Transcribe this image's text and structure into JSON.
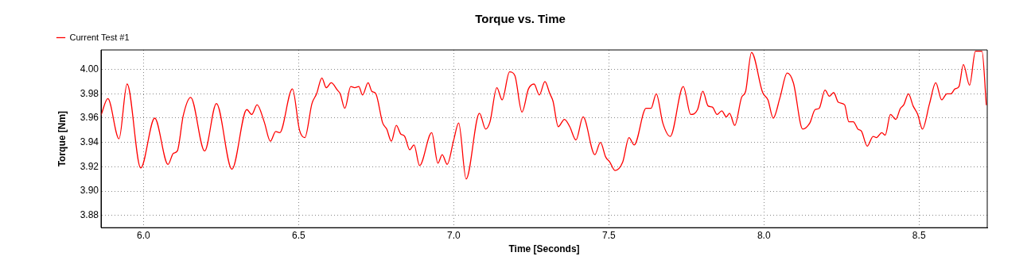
{
  "chart_data": {
    "type": "line",
    "title": "Torque vs. Time",
    "xlabel": "Time [Seconds]",
    "ylabel": "Torque [Nm]",
    "xlim": [
      5.863,
      8.72
    ],
    "ylim": [
      3.87,
      4.016
    ],
    "xticks": [
      {
        "value": 6,
        "label": "6.0"
      },
      6.5,
      {
        "value": 7,
        "label": "7.0"
      },
      7.5,
      {
        "value": 8,
        "label": "8.0"
      },
      8.5
    ],
    "yticks": [
      3.88,
      {
        "value": 3.9,
        "label": "3.90"
      },
      3.92,
      3.94,
      3.96,
      3.98,
      {
        "value": 4,
        "label": "4.00"
      }
    ],
    "grid": true,
    "legend": "top left",
    "x": [
      5.863,
      5.885,
      5.921,
      5.947,
      5.991,
      6.036,
      6.079,
      6.096,
      6.109,
      6.128,
      6.152,
      6.197,
      6.235,
      6.285,
      6.333,
      6.349,
      6.366,
      6.389,
      6.409,
      6.426,
      6.439,
      6.48,
      6.503,
      6.52,
      6.543,
      6.558,
      6.575,
      6.589,
      6.605,
      6.625,
      6.634,
      6.649,
      6.668,
      6.681,
      6.694,
      6.706,
      6.724,
      6.736,
      6.749,
      6.771,
      6.784,
      6.799,
      6.815,
      6.829,
      6.842,
      6.858,
      6.872,
      6.89,
      6.929,
      6.949,
      6.963,
      6.979,
      7.0,
      7.016,
      7.04,
      7.083,
      7.103,
      7.117,
      7.139,
      7.156,
      7.18,
      7.197,
      7.22,
      7.241,
      7.259,
      7.276,
      7.294,
      7.31,
      7.32,
      7.337,
      7.357,
      7.374,
      7.394,
      7.417,
      7.455,
      7.473,
      7.49,
      7.503,
      7.52,
      7.545,
      7.565,
      7.582,
      7.62,
      7.636,
      7.653,
      7.674,
      7.698,
      7.74,
      7.764,
      7.786,
      7.803,
      7.82,
      7.834,
      7.849,
      7.864,
      7.879,
      7.889,
      7.906,
      7.928,
      7.941,
      7.96,
      7.996,
      8.013,
      8.03,
      8.052,
      8.075,
      8.095,
      8.125,
      8.148,
      8.165,
      8.178,
      8.197,
      8.211,
      8.225,
      8.24,
      8.26,
      8.274,
      8.288,
      8.303,
      8.315,
      8.333,
      8.352,
      8.363,
      8.38,
      8.391,
      8.408,
      8.425,
      8.44,
      8.451,
      8.466,
      8.481,
      8.496,
      8.511,
      8.534,
      8.554,
      8.573,
      8.59,
      8.603,
      8.616,
      8.629,
      8.643,
      8.663,
      8.682,
      8.703,
      8.717
    ],
    "series": [
      {
        "name": "Current Test #1",
        "color": "#ff0000",
        "values": [
          3.9625,
          3.976,
          3.943,
          3.988,
          3.919,
          3.96,
          3.922,
          3.931,
          3.933,
          3.962,
          3.977,
          3.933,
          3.972,
          3.918,
          3.967,
          3.963,
          3.971,
          3.957,
          3.941,
          3.949,
          3.948,
          3.984,
          3.95,
          3.944,
          3.972,
          3.98,
          3.993,
          3.985,
          3.989,
          3.983,
          3.98,
          3.968,
          3.986,
          3.985,
          3.986,
          3.979,
          3.989,
          3.982,
          3.98,
          3.956,
          3.951,
          3.941,
          3.954,
          3.947,
          3.945,
          3.934,
          3.938,
          3.921,
          3.948,
          3.923,
          3.93,
          3.922,
          3.942,
          3.956,
          3.91,
          3.964,
          3.951,
          3.957,
          3.985,
          3.975,
          3.998,
          3.995,
          3.965,
          3.984,
          3.988,
          3.979,
          3.99,
          3.98,
          3.974,
          3.953,
          3.959,
          3.953,
          3.942,
          3.961,
          3.93,
          3.94,
          3.928,
          3.924,
          3.917,
          3.924,
          3.944,
          3.938,
          3.968,
          3.968,
          3.98,
          3.956,
          3.945,
          3.986,
          3.963,
          3.967,
          3.982,
          3.97,
          3.969,
          3.963,
          3.966,
          3.961,
          3.964,
          3.954,
          3.977,
          3.982,
          4.014,
          3.981,
          3.975,
          3.96,
          3.977,
          3.997,
          3.989,
          3.951,
          3.956,
          3.967,
          3.968,
          3.983,
          3.978,
          3.981,
          3.973,
          3.971,
          3.957,
          3.957,
          3.951,
          3.949,
          3.937,
          3.945,
          3.944,
          3.948,
          3.946,
          3.963,
          3.959,
          3.968,
          3.971,
          3.98,
          3.97,
          3.963,
          3.951,
          3.972,
          3.989,
          3.975,
          3.98,
          3.98,
          3.984,
          3.986,
          4.004,
          3.987,
          4.015,
          4.015,
          3.971
        ]
      }
    ]
  }
}
